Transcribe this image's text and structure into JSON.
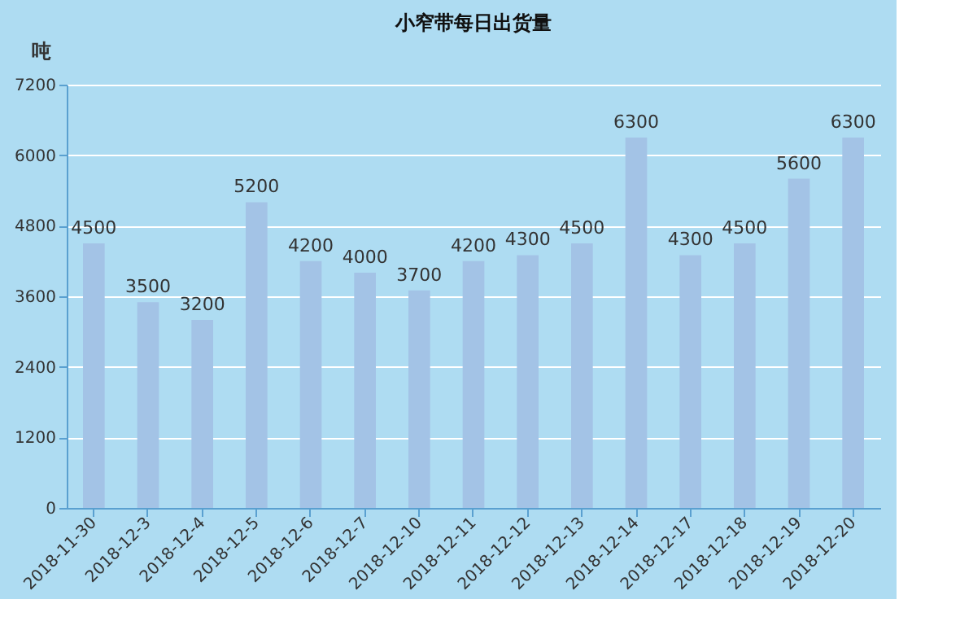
{
  "chart_data": {
    "type": "bar",
    "title": "小窄带每日出货量",
    "ylabel": "吨",
    "categories": [
      "2018-11-30",
      "2018-12-3",
      "2018-12-4",
      "2018-12-5",
      "2018-12-6",
      "2018-12-7",
      "2018-12-10",
      "2018-12-11",
      "2018-12-12",
      "2018-12-13",
      "2018-12-14",
      "2018-12-17",
      "2018-12-18",
      "2018-12-19",
      "2018-12-20"
    ],
    "values": [
      4500,
      3500,
      3200,
      5200,
      4200,
      4000,
      3700,
      4200,
      4300,
      4500,
      6300,
      4300,
      4500,
      5600,
      6300
    ],
    "color": "#a3c3e6",
    "ylim": [
      0,
      7200
    ],
    "yticks": [
      0,
      1200,
      2400,
      3600,
      4800,
      6000,
      7200
    ],
    "grid": "y",
    "data_labels": true
  }
}
